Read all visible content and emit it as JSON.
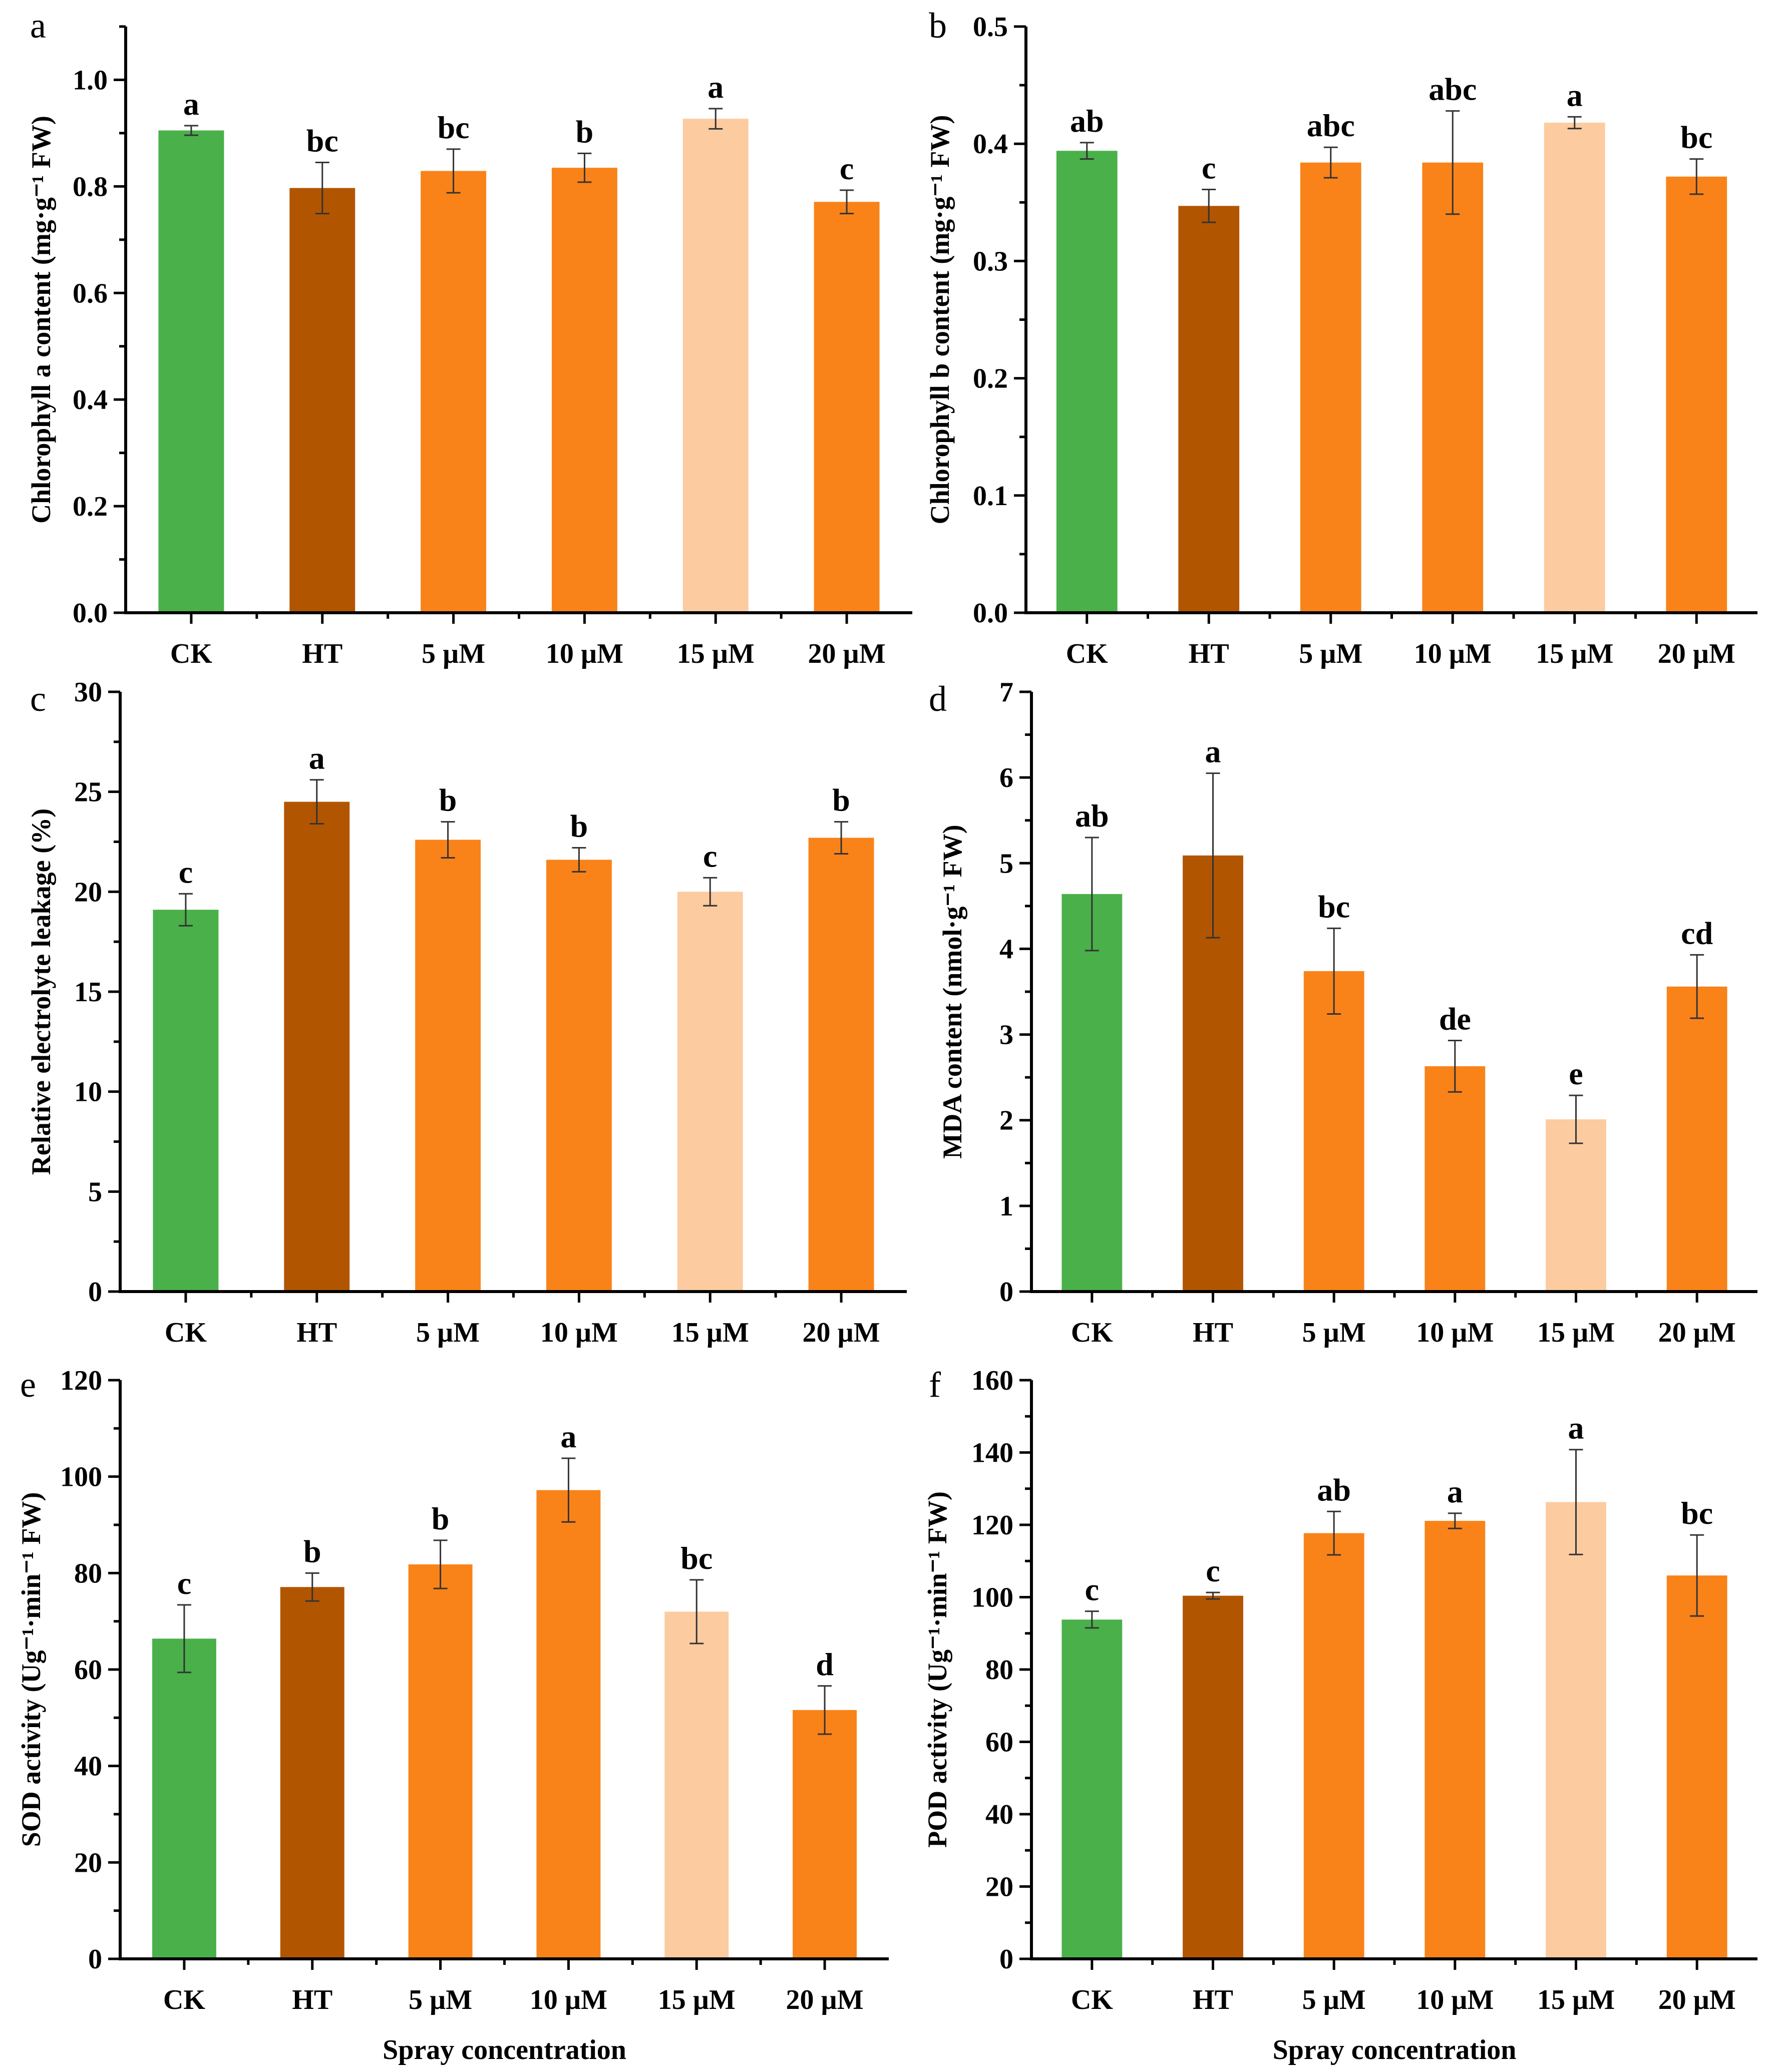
{
  "figure": {
    "panel_count": 6,
    "bar_colors": {
      "CK": "#4AB04A",
      "HT": "#B25500",
      "5 µM": "#F98319",
      "10 µM": "#F98319",
      "15 µM": "#FDCBA0",
      "20 µM": "#F98319"
    }
  },
  "chart_data": [
    {
      "panel": "a",
      "type": "bar",
      "title": "",
      "xlabel": "",
      "ylabel": "Chlorophyll a content (mg·g⁻¹ FW)",
      "ylim": [
        0,
        1.1
      ],
      "yticks": [
        0.0,
        0.2,
        0.4,
        0.6,
        0.8,
        1.0
      ],
      "ytick_labels": [
        "0.0",
        "0.2",
        "0.4",
        "0.6",
        "0.8",
        "1.0"
      ],
      "categories": [
        "CK",
        "HT",
        "5 µM",
        "10 µM",
        "15 µM",
        "20 µM"
      ],
      "values": [
        0.905,
        0.797,
        0.829,
        0.835,
        0.927,
        0.771
      ],
      "errors": [
        0.009,
        0.048,
        0.041,
        0.027,
        0.019,
        0.022
      ],
      "significance": [
        "a",
        "bc",
        "bc",
        "b",
        "a",
        "c"
      ],
      "grid": false,
      "legend": "none"
    },
    {
      "panel": "b",
      "type": "bar",
      "title": "",
      "xlabel": "",
      "ylabel": "Chlorophyll b content (mg·g⁻¹ FW)",
      "ylim": [
        0,
        0.5
      ],
      "yticks": [
        0.0,
        0.1,
        0.2,
        0.3,
        0.4,
        0.5
      ],
      "ytick_labels": [
        "0.0",
        "0.1",
        "0.2",
        "0.3",
        "0.4",
        "0.5"
      ],
      "categories": [
        "CK",
        "HT",
        "5 µM",
        "10 µM",
        "15 µM",
        "20 µM"
      ],
      "values": [
        0.394,
        0.347,
        0.384,
        0.384,
        0.418,
        0.372
      ],
      "errors": [
        0.007,
        0.014,
        0.013,
        0.044,
        0.005,
        0.015
      ],
      "significance": [
        "ab",
        "c",
        "abc",
        "abc",
        "a",
        "bc"
      ],
      "grid": false,
      "legend": "none"
    },
    {
      "panel": "c",
      "type": "bar",
      "title": "",
      "xlabel": "",
      "ylabel": "Relative electrolyte leakage (%)",
      "ylim": [
        0,
        30
      ],
      "yticks": [
        0,
        5,
        10,
        15,
        20,
        25,
        30
      ],
      "ytick_labels": [
        "0",
        "5",
        "10",
        "15",
        "20",
        "25",
        "30"
      ],
      "categories": [
        "CK",
        "HT",
        "5 µM",
        "10 µM",
        "15 µM",
        "20 µM"
      ],
      "values": [
        19.1,
        24.5,
        22.6,
        21.6,
        20.0,
        22.7
      ],
      "errors": [
        0.8,
        1.1,
        0.9,
        0.6,
        0.7,
        0.8
      ],
      "significance": [
        "c",
        "a",
        "b",
        "b",
        "c",
        "b"
      ],
      "grid": false,
      "legend": "none"
    },
    {
      "panel": "d",
      "type": "bar",
      "title": "",
      "xlabel": "",
      "ylabel": "MDA content (nmol·g⁻¹ FW)",
      "ylim": [
        0,
        7
      ],
      "yticks": [
        0,
        1,
        2,
        3,
        4,
        5,
        6,
        7
      ],
      "ytick_labels": [
        "0",
        "1",
        "2",
        "3",
        "4",
        "5",
        "6",
        "7"
      ],
      "categories": [
        "CK",
        "HT",
        "5 µM",
        "10 µM",
        "15 µM",
        "20 µM"
      ],
      "values": [
        4.64,
        5.09,
        3.74,
        2.63,
        2.01,
        3.56
      ],
      "errors": [
        0.66,
        0.96,
        0.5,
        0.3,
        0.28,
        0.37
      ],
      "significance": [
        "ab",
        "a",
        "bc",
        "de",
        "e",
        "cd"
      ],
      "grid": false,
      "legend": "none"
    },
    {
      "panel": "e",
      "type": "bar",
      "title": "",
      "xlabel": "Spray concentration",
      "ylabel": "SOD activity (Ug⁻¹·min⁻¹ FW)",
      "ylim": [
        0,
        120
      ],
      "yticks": [
        0,
        20,
        40,
        60,
        80,
        100,
        120
      ],
      "ytick_labels": [
        "0",
        "20",
        "40",
        "60",
        "80",
        "100",
        "120"
      ],
      "categories": [
        "CK",
        "HT",
        "5 µM",
        "10 µM",
        "15 µM",
        "20 µM"
      ],
      "values": [
        66.4,
        77.1,
        81.8,
        97.2,
        72.0,
        51.6
      ],
      "errors": [
        7.0,
        2.9,
        5.0,
        6.6,
        6.6,
        5.0
      ],
      "significance": [
        "c",
        "b",
        "b",
        "a",
        "bc",
        "d"
      ],
      "grid": false,
      "legend": "none"
    },
    {
      "panel": "f",
      "type": "bar",
      "title": "",
      "xlabel": "Spray concentration",
      "ylabel": "POD activity (Ug⁻¹·min⁻¹ FW)",
      "ylim": [
        0,
        160
      ],
      "yticks": [
        0,
        20,
        40,
        60,
        80,
        100,
        120,
        140,
        160
      ],
      "ytick_labels": [
        "0",
        "20",
        "40",
        "60",
        "80",
        "100",
        "120",
        "140",
        "160"
      ],
      "categories": [
        "CK",
        "HT",
        "5 µM",
        "10 µM",
        "15 µM",
        "20 µM"
      ],
      "values": [
        93.8,
        100.4,
        117.7,
        121.1,
        126.3,
        106.0
      ],
      "errors": [
        2.3,
        0.9,
        6.0,
        2.1,
        14.5,
        11.2
      ],
      "significance": [
        "c",
        "c",
        "ab",
        "a",
        "a",
        "bc"
      ],
      "grid": false,
      "legend": "none"
    }
  ]
}
